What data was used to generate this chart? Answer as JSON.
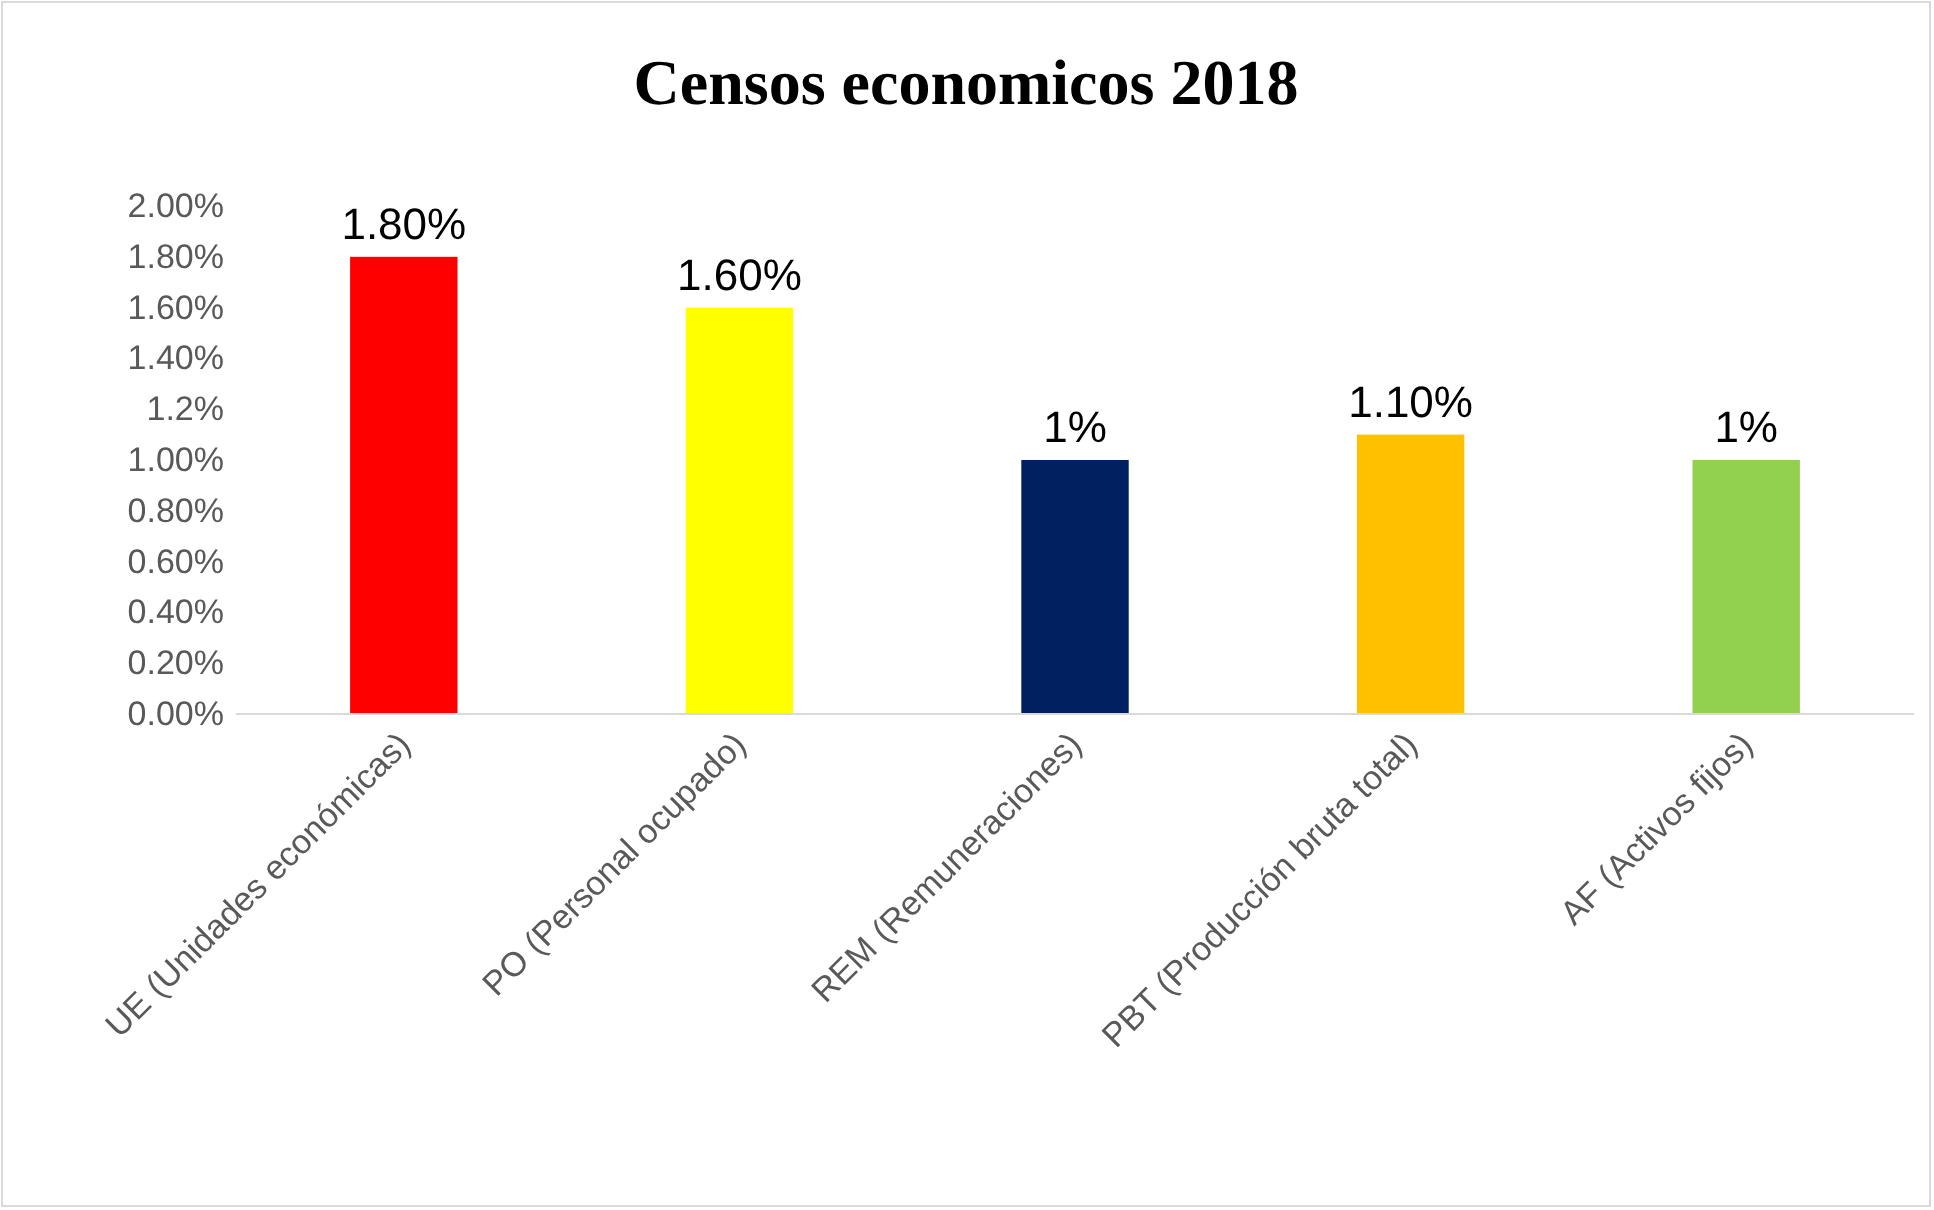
{
  "chart_data": {
    "type": "bar",
    "title": "Censos economicos 2018",
    "categories": [
      "UE (Unidades económicas)",
      "PO (Personal ocupado)",
      "REM (Remuneraciones)",
      "PBT (Producción bruta total)",
      "AF (Activos fijos)"
    ],
    "values": [
      1.8,
      1.6,
      1.0,
      1.1,
      1.0
    ],
    "colors": [
      "#ff0000",
      "#ffff00",
      "#002060",
      "#ffc000",
      "#92d050"
    ],
    "value_labels": [
      "1.80%",
      "1.60%",
      "1%",
      "1.10%",
      "1%"
    ],
    "ylim": [
      0,
      2
    ],
    "yticks": [
      {
        "value": 0,
        "label": "0.00%"
      },
      {
        "value": 0.2,
        "label": "0.20%"
      },
      {
        "value": 0.4,
        "label": "0.40%"
      },
      {
        "value": 0.6,
        "label": "0.60%"
      },
      {
        "value": 0.8,
        "label": "0.80%"
      },
      {
        "value": 1.0,
        "label": "1.00%"
      },
      {
        "value": 1.2,
        "label": "1.2%"
      },
      {
        "value": 1.4,
        "label": "1.40%"
      },
      {
        "value": 1.6,
        "label": "1.60%"
      },
      {
        "value": 1.8,
        "label": "1.80%"
      },
      {
        "value": 2.0,
        "label": "2.00%"
      }
    ],
    "grid": false
  }
}
